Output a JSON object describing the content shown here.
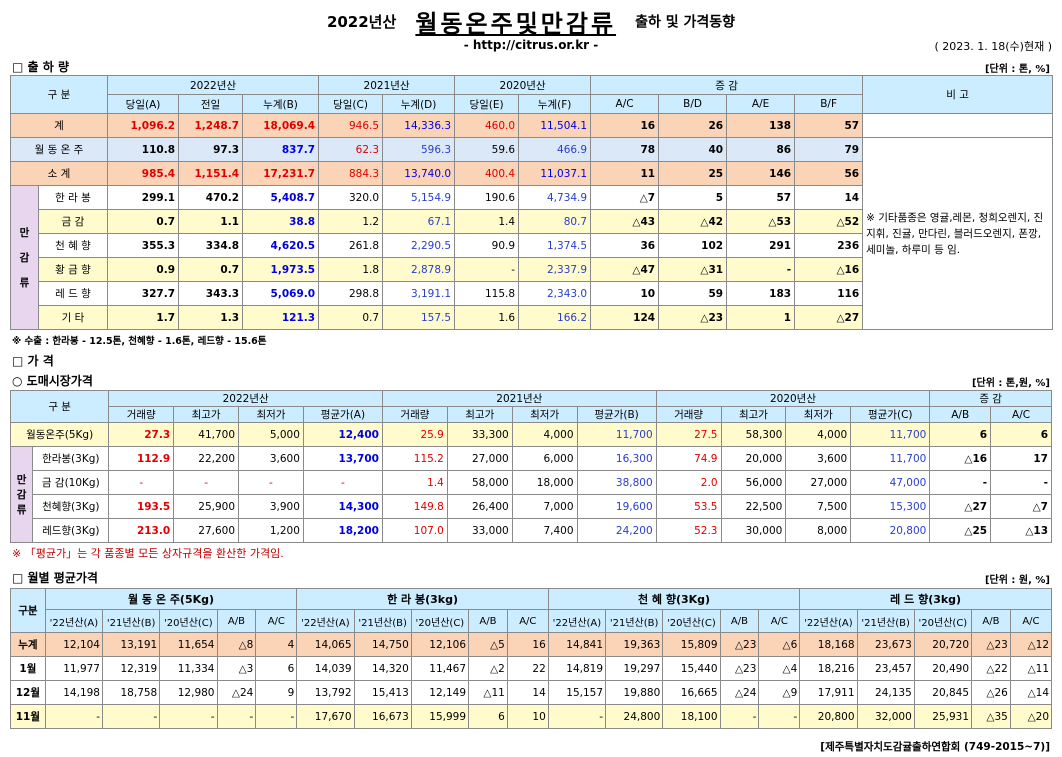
{
  "header": {
    "season": "2022년산",
    "product": "월동온주및만감류",
    "rest": "출하 및 가격동향",
    "url": "- http://citrus.or.kr -",
    "as_of": "( 2023. 1. 18(수)현재 )"
  },
  "shipment": {
    "section_title": "□ 출 하 량",
    "unit": "[단위 : 톤, %]",
    "col_group": [
      "구    분",
      "2022년산",
      "2021년산",
      "2020년산",
      "증    감",
      "비  고"
    ],
    "col_sub": [
      "당일(A)",
      "전일",
      "누계(B)",
      "당일(C)",
      "누계(D)",
      "당일(E)",
      "누계(F)",
      "A/C",
      "B/D",
      "A/E",
      "B/F"
    ],
    "note": "※ 기타품종은 영귤,레몬, 청희오렌지, 진지휘, 진귤, 만다린, 블러드오렌지, 폰깡,세미놀, 하루미 등 임.",
    "side_label": [
      "만",
      "감",
      "류"
    ],
    "rows": [
      {
        "label": "계",
        "v": [
          "1,096.2",
          "1,248.7",
          "18,069.4",
          "946.5",
          "14,336.3",
          "460.0",
          "11,504.1",
          "16",
          "26",
          "138",
          "57"
        ]
      },
      {
        "label": "월 동 온 주",
        "v": [
          "110.8",
          "97.3",
          "837.7",
          "62.3",
          "596.3",
          "59.6",
          "466.9",
          "78",
          "40",
          "86",
          "79"
        ]
      },
      {
        "label": "소    계",
        "v": [
          "985.4",
          "1,151.4",
          "17,231.7",
          "884.3",
          "13,740.0",
          "400.4",
          "11,037.1",
          "11",
          "25",
          "146",
          "56"
        ]
      },
      {
        "label": "한 라 봉",
        "v": [
          "299.1",
          "470.2",
          "5,408.7",
          "320.0",
          "5,154.9",
          "190.6",
          "4,734.9",
          "△7",
          "5",
          "57",
          "14"
        ]
      },
      {
        "label": "금    감",
        "v": [
          "0.7",
          "1.1",
          "38.8",
          "1.2",
          "67.1",
          "1.4",
          "80.7",
          "△43",
          "△42",
          "△53",
          "△52"
        ]
      },
      {
        "label": "천 혜 향",
        "v": [
          "355.3",
          "334.8",
          "4,620.5",
          "261.8",
          "2,290.5",
          "90.9",
          "1,374.5",
          "36",
          "102",
          "291",
          "236"
        ]
      },
      {
        "label": "황 금 향",
        "v": [
          "0.9",
          "0.7",
          "1,973.5",
          "1.8",
          "2,878.9",
          "-",
          "2,337.9",
          "△47",
          "△31",
          "-",
          "△16"
        ]
      },
      {
        "label": "레 드 향",
        "v": [
          "327.7",
          "343.3",
          "5,069.0",
          "298.8",
          "3,191.1",
          "115.8",
          "2,343.0",
          "10",
          "59",
          "183",
          "116"
        ]
      },
      {
        "label": "기    타",
        "v": [
          "1.7",
          "1.3",
          "121.3",
          "0.7",
          "157.5",
          "1.6",
          "166.2",
          "124",
          "△23",
          "1",
          "△27"
        ]
      }
    ],
    "footnote": "※ 수출 : 한라봉 - 12.5톤, 천혜향 - 1.6톤, 레드향 - 15.6톤"
  },
  "price": {
    "section_title": "□ 가     격",
    "sub_title": "○ 도매시장가격",
    "unit": "[단위 : 톤,원, %]",
    "col_group": [
      "구    분",
      "2022년산",
      "2021년산",
      "2020년산",
      "증    감"
    ],
    "col_sub": [
      "거래량",
      "최고가",
      "최저가",
      "평균가(A)",
      "거래량",
      "최고가",
      "최저가",
      "평균가(B)",
      "거래량",
      "최고가",
      "최저가",
      "평균가(C)",
      "A/B",
      "A/C"
    ],
    "side_label": [
      "만",
      "감",
      "류"
    ],
    "rows": [
      {
        "label": "월동온주(5Kg)",
        "v": [
          "27.3",
          "41,700",
          "5,000",
          "12,400",
          "25.9",
          "33,300",
          "4,000",
          "11,700",
          "27.5",
          "58,300",
          "4,000",
          "11,700",
          "6",
          "6"
        ]
      },
      {
        "label": "한라봉(3Kg)",
        "v": [
          "112.9",
          "22,200",
          "3,600",
          "13,700",
          "115.2",
          "27,000",
          "6,000",
          "16,300",
          "74.9",
          "20,000",
          "3,600",
          "11,700",
          "△16",
          "17"
        ]
      },
      {
        "label": "금 감(10Kg)",
        "v": [
          "-",
          "-",
          "-",
          "-",
          "1.4",
          "58,000",
          "18,000",
          "38,800",
          "2.0",
          "56,000",
          "27,000",
          "47,000",
          "-",
          "-"
        ]
      },
      {
        "label": "천혜향(3Kg)",
        "v": [
          "193.5",
          "25,900",
          "3,900",
          "14,300",
          "149.8",
          "26,400",
          "7,000",
          "19,600",
          "53.5",
          "22,500",
          "7,500",
          "15,300",
          "△27",
          "△7"
        ]
      },
      {
        "label": "레드향(3Kg)",
        "v": [
          "213.0",
          "27,600",
          "1,200",
          "18,200",
          "107.0",
          "33,000",
          "7,400",
          "24,200",
          "52.3",
          "30,000",
          "8,000",
          "20,800",
          "△25",
          "△13"
        ]
      }
    ],
    "footnote": "※ 「평균가」는 각 품종별 모든 상자규격을 환산한 가격임."
  },
  "monthly": {
    "section_title": "□ 월별 평균가격",
    "unit": "[단위 : 원, %]",
    "corner": "구분",
    "groups": [
      "월 동 온 주(5Kg)",
      "한  라  봉(3kg)",
      "천 혜 향(3Kg)",
      "레 드 향(3kg)"
    ],
    "sub": [
      "'22년산(A)",
      "'21년산(B)",
      "'20년산(C)",
      "A/B",
      "A/C"
    ],
    "rows": [
      {
        "label": "누계",
        "v": [
          "12,104",
          "13,191",
          "11,654",
          "△8",
          "4",
          "14,065",
          "14,750",
          "12,106",
          "△5",
          "16",
          "14,841",
          "19,363",
          "15,809",
          "△23",
          "△6",
          "18,168",
          "23,673",
          "20,720",
          "△23",
          "△12"
        ]
      },
      {
        "label": "1월",
        "v": [
          "11,977",
          "12,319",
          "11,334",
          "△3",
          "6",
          "14,039",
          "14,320",
          "11,467",
          "△2",
          "22",
          "14,819",
          "19,297",
          "15,440",
          "△23",
          "△4",
          "18,216",
          "23,457",
          "20,490",
          "△22",
          "△11"
        ]
      },
      {
        "label": "12월",
        "v": [
          "14,198",
          "18,758",
          "12,980",
          "△24",
          "9",
          "13,792",
          "15,413",
          "12,149",
          "△11",
          "14",
          "15,157",
          "19,880",
          "16,665",
          "△24",
          "△9",
          "17,911",
          "24,135",
          "20,845",
          "△26",
          "△14"
        ]
      },
      {
        "label": "11월",
        "v": [
          "-",
          "-",
          "-",
          "-",
          "-",
          "17,670",
          "16,673",
          "15,999",
          "6",
          "10",
          "-",
          "24,800",
          "18,100",
          "-",
          "-",
          "20,800",
          "32,000",
          "25,931",
          "△35",
          "△20"
        ]
      }
    ],
    "source": "[제주특별자치도감귤출하연합회 (749-2015~7)]"
  },
  "colors": {
    "header_bg": "#ccecff",
    "total_bg": "#fbd3b6",
    "alt_bg": "#fffbcc",
    "side_bg": "#e8d5ee",
    "red": "#e00000",
    "blue": "#0000e0"
  }
}
